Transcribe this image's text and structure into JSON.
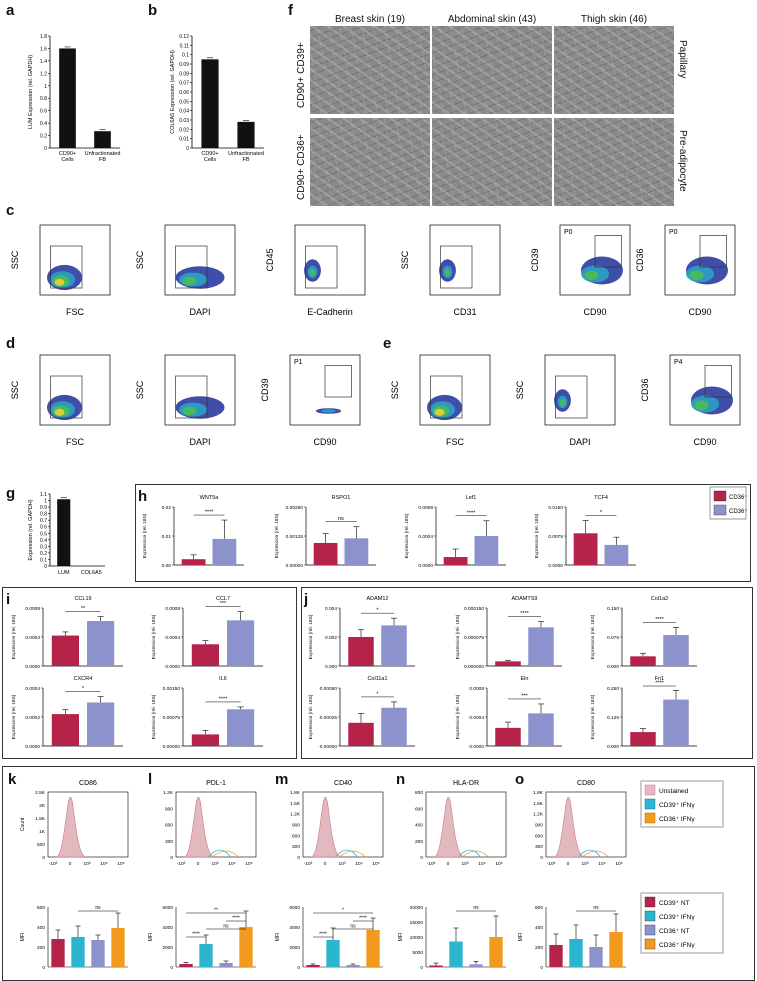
{
  "panels": [
    "a",
    "b",
    "c",
    "d",
    "e",
    "f",
    "g",
    "h",
    "i",
    "j",
    "k",
    "l",
    "m",
    "n",
    "o"
  ],
  "panel_a": {
    "ylabel": "LUM Expression (rel. GAPDH)",
    "yticks": [
      "0",
      "0.2",
      "0.4",
      "0.6",
      "0.8",
      "1",
      "1.2",
      "1.4",
      "1.6",
      "1.8"
    ],
    "categories": [
      "CD90+ Cells",
      "Unfractionated FB"
    ],
    "values": [
      1.6,
      0.27
    ]
  },
  "panel_b": {
    "ylabel": "COL6A5 Expression (rel. GAPDH)",
    "yticks": [
      "0",
      "0.01",
      "0.02",
      "0.03",
      "0.04",
      "0.05",
      "0.06",
      "0.07",
      "0.08",
      "0.09",
      "0.1",
      "0.11",
      "0.12"
    ],
    "categories": [
      "CD90+ Cells",
      "Unfractionated FB"
    ],
    "values": [
      0.095,
      0.028
    ]
  },
  "panel_f": {
    "columns": [
      "Breast skin (19)",
      "Abdominal skin (43)",
      "Thigh skin (46)"
    ],
    "rows_left": [
      "CD90+ CD39+",
      "CD90+ CD36+"
    ],
    "rows_right": [
      "Papillary",
      "Pre-adipocyte"
    ]
  },
  "flow_row_c": [
    {
      "ylabel": "SSC",
      "xlabel": "FSC",
      "yticks": [
        "0",
        "50K",
        "100K",
        "150K",
        "200K",
        "250K"
      ],
      "xticks": [
        "0",
        "50K",
        "100K",
        "150K",
        "200K",
        "250K"
      ]
    },
    {
      "ylabel": "SSC",
      "xlabel": "DAPI",
      "yticks": [
        "0",
        "50K",
        "100K",
        "150K",
        "200K",
        "250K"
      ],
      "xticks": [
        "-10³",
        "0",
        "10³",
        "10⁴",
        "10⁵"
      ]
    },
    {
      "ylabel": "CD45",
      "xlabel": "E-Cadherin",
      "yticks": [
        "-10³",
        "0",
        "10³",
        "10⁴",
        "10⁵"
      ],
      "xticks": [
        "-10³",
        "0",
        "10³",
        "10⁴",
        "10⁵"
      ]
    },
    {
      "ylabel": "SSC",
      "xlabel": "CD31",
      "yticks": [
        "0",
        "50K",
        "100K",
        "150K",
        "200K",
        "250K"
      ],
      "xticks": [
        "-10³",
        "0",
        "10³",
        "10⁴",
        "10⁵"
      ]
    },
    {
      "ylabel": "CD39",
      "xlabel": "CD90",
      "gate": "P0",
      "yticks": [
        "-10³",
        "0",
        "10³",
        "10⁴",
        "10⁵"
      ],
      "xticks": [
        "-10³",
        "0",
        "10³",
        "10⁴",
        "10⁵"
      ]
    },
    {
      "ylabel": "CD36",
      "xlabel": "CD90",
      "gate": "P0",
      "yticks": [
        "-10³",
        "0",
        "10³",
        "10⁴",
        "10⁵"
      ],
      "xticks": [
        "-10³",
        "0",
        "10³",
        "10⁴",
        "10⁵"
      ]
    }
  ],
  "flow_row_de": [
    {
      "ylabel": "SSC",
      "xlabel": "FSC"
    },
    {
      "ylabel": "SSC",
      "xlabel": "DAPI"
    },
    {
      "ylabel": "CD39",
      "xlabel": "CD90",
      "gate": "P1"
    },
    {
      "ylabel": "SSC",
      "xlabel": "FSC"
    },
    {
      "ylabel": "SSC",
      "xlabel": "DAPI"
    },
    {
      "ylabel": "CD36",
      "xlabel": "CD90",
      "gate": "P4"
    }
  ],
  "panel_g": {
    "ylabel": "Expression (rel. GAPDH)",
    "yticks": [
      "0",
      "0.1",
      "0.2",
      "0.3",
      "0.4",
      "0.5",
      "0.6",
      "0.7",
      "0.8",
      "0.9",
      "1",
      "1.1"
    ],
    "categories": [
      "LUM",
      "COL6A5"
    ],
    "values": [
      1.02,
      0
    ]
  },
  "legend_h": [
    {
      "label": "CD36⁺",
      "color": "#b5234a"
    },
    {
      "label": "CD36⁺",
      "color": "#8c93cc"
    }
  ],
  "legend_k": [
    "Unstained",
    "CD39⁺ IFNγ",
    "CD36⁺ IFNγ"
  ],
  "legend_mfi": [
    "CD39⁺ NT",
    "CD39⁺ IFNγ",
    "CD36⁺ NT",
    "CD36⁺ IFNγ"
  ],
  "colors": {
    "red": "#b5234a",
    "purple": "#8c93cc",
    "cyan": "#2bb5cf",
    "orange": "#f29a1d",
    "pink": "#c97d8a",
    "pinkfill": "#e3b9c0",
    "black": "#111111"
  },
  "chart_data": [
    {
      "panel": "a",
      "type": "bar",
      "categories": [
        "CD90+ Cells",
        "Unfractionated FB"
      ],
      "values": [
        1.6,
        0.27
      ],
      "ylabel": "LUM Expression (rel. GAPDH)",
      "ylim": [
        0,
        1.8
      ]
    },
    {
      "panel": "b",
      "type": "bar",
      "categories": [
        "CD90+ Cells",
        "Unfractionated FB"
      ],
      "values": [
        0.095,
        0.028
      ],
      "ylabel": "COL6A5 Expression (rel. GAPDH)",
      "ylim": [
        0,
        0.12
      ]
    },
    {
      "panel": "g",
      "type": "bar",
      "categories": [
        "LUM",
        "COL6A5"
      ],
      "values": [
        1.02,
        0
      ],
      "ylabel": "Expression (rel. GAPDH)",
      "ylim": [
        0,
        1.1
      ]
    },
    {
      "panel": "h",
      "type": "bar",
      "title": "WNT5a",
      "ylabel": "Expression (rel. 18S)",
      "yticks": [
        "0.00",
        "0.01",
        "0.02"
      ],
      "ymax": 0.02,
      "values": [
        0.002,
        0.009
      ],
      "err": [
        0.0015,
        0.0065
      ],
      "sig": "****"
    },
    {
      "panel": "h",
      "type": "bar",
      "title": "RSPO1",
      "ylabel": "Expression (rel. 18S)",
      "yticks": [
        "0.00000",
        "0.00125",
        "0.00250"
      ],
      "ymax": 0.0025,
      "values": [
        0.00095,
        0.00115
      ],
      "err": [
        0.0004,
        0.0005
      ],
      "sig": "ns"
    },
    {
      "panel": "h",
      "type": "bar",
      "title": "Lef1",
      "ylabel": "Expression (rel. 18S)",
      "yticks": [
        "0.0000",
        "0.0004",
        "0.0008"
      ],
      "ymax": 0.0008,
      "values": [
        0.00011,
        0.0004
      ],
      "err": [
        0.00011,
        0.00021
      ],
      "sig": "****"
    },
    {
      "panel": "h",
      "type": "bar",
      "title": "TCF4",
      "ylabel": "Expression (rel. 18S)",
      "yticks": [
        "0.0000",
        "0.0075",
        "0.0150"
      ],
      "ymax": 0.015,
      "values": [
        0.0082,
        0.0052
      ],
      "err": [
        0.0033,
        0.002
      ],
      "sig": "*"
    },
    {
      "panel": "i",
      "type": "bar",
      "title": "CCL19",
      "ylabel": "Expression (rel. 18S)",
      "yticks": [
        "0.0000",
        "0.0004",
        "0.0008"
      ],
      "ymax": 0.0008,
      "values": [
        0.00042,
        0.00062
      ],
      "err": [
        5e-05,
        6e-05
      ],
      "sig": "**"
    },
    {
      "panel": "i",
      "type": "bar",
      "title": "CCL7",
      "ylabel": "Expression (rel. 18S)",
      "yticks": [
        "0.0000",
        "0.0004",
        "0.0008"
      ],
      "ymax": 0.0008,
      "values": [
        0.0003,
        0.00063
      ],
      "err": [
        5e-05,
        0.00012
      ],
      "sig": "***"
    },
    {
      "panel": "i",
      "type": "bar",
      "title": "CXCR4",
      "ylabel": "Expression (rel. 18S)",
      "yticks": [
        "0.0000",
        "0.0002",
        "0.0004"
      ],
      "ymax": 0.0004,
      "values": [
        0.00022,
        0.0003
      ],
      "err": [
        3e-05,
        4e-05
      ],
      "sig": "*"
    },
    {
      "panel": "i",
      "type": "bar",
      "title": "IL6",
      "ylabel": "Expression (rel. 18S)",
      "yticks": [
        "0.00000",
        "0.00075",
        "0.00150"
      ],
      "ymax": 0.0015,
      "values": [
        0.0003,
        0.00095
      ],
      "err": [
        0.0001,
        6e-05
      ],
      "sig": "****"
    },
    {
      "panel": "j",
      "type": "bar",
      "title": "ADAM12",
      "ylabel": "Expression (rel. 18S)",
      "yticks": [
        "0.000",
        "0.002",
        "0.004"
      ],
      "ymax": 0.004,
      "values": [
        0.002,
        0.0028
      ],
      "err": [
        0.0005,
        0.0005
      ],
      "sig": "*"
    },
    {
      "panel": "j",
      "type": "bar",
      "title": "ADAMTS9",
      "ylabel": "Expression (rel. 18S)",
      "yticks": [
        "0.000000",
        "0.000075",
        "0.000150"
      ],
      "ymax": 0.00015,
      "values": [
        1.2e-05,
        0.0001
      ],
      "err": [
        2e-06,
        1.5e-05
      ],
      "sig": "****"
    },
    {
      "panel": "j",
      "type": "bar",
      "title": "Col1a2",
      "ylabel": "Expression (rel. 18S)",
      "yticks": [
        "0.000",
        "0.075",
        "0.150"
      ],
      "ymax": 0.15,
      "values": [
        0.025,
        0.08
      ],
      "err": [
        0.008,
        0.02
      ],
      "sig": "****"
    },
    {
      "panel": "j",
      "type": "bar",
      "title": "Col11a1",
      "ylabel": "Expression (rel. 18S)",
      "yticks": [
        "0.00000",
        "0.00025",
        "0.00050"
      ],
      "ymax": 0.0005,
      "values": [
        0.0002,
        0.00033
      ],
      "err": [
        8e-05,
        5e-05
      ],
      "sig": "*"
    },
    {
      "panel": "j",
      "type": "bar",
      "title": "Eln",
      "ylabel": "Expression (rel. 18S)",
      "yticks": [
        "0.0000",
        "0.0004",
        "0.0008"
      ],
      "ymax": 0.0008,
      "values": [
        0.00025,
        0.00045
      ],
      "err": [
        8e-05,
        0.00013
      ],
      "sig": "***"
    },
    {
      "panel": "j",
      "type": "bar",
      "title": "Fn1",
      "ylabel": "Expression (rel. 18S)",
      "yticks": [
        "0.000",
        "0.125",
        "0.250"
      ],
      "ymax": 0.25,
      "values": [
        0.06,
        0.2
      ],
      "err": [
        0.015,
        0.04
      ],
      "sig": "****"
    },
    {
      "panel": "k",
      "type": "bar",
      "ylabel": "MFI",
      "yticks": [
        "0",
        "200",
        "400",
        "600"
      ],
      "ymax": 600,
      "values": [
        280,
        300,
        270,
        390
      ],
      "err": [
        90,
        110,
        50,
        150
      ],
      "sig": "ns"
    },
    {
      "panel": "l",
      "type": "bar",
      "ylabel": "MFI",
      "yticks": [
        "0",
        "2000",
        "4000",
        "6000"
      ],
      "ymax": 6000,
      "values": [
        300,
        2300,
        400,
        4000
      ],
      "err": [
        150,
        900,
        200,
        1600
      ],
      "sig": [
        "****",
        "ns",
        "****",
        "**"
      ]
    },
    {
      "panel": "m",
      "type": "bar",
      "ylabel": "MFI",
      "yticks": [
        "0",
        "2000",
        "4000",
        "6000"
      ],
      "ymax": 6000,
      "values": [
        200,
        2700,
        200,
        3700
      ],
      "err": [
        100,
        1200,
        100,
        1200
      ],
      "sig": [
        "****",
        "ns",
        "****",
        "*"
      ]
    },
    {
      "panel": "n",
      "type": "bar",
      "ylabel": "MFI",
      "yticks": [
        "0",
        "5000",
        "10000",
        "15000",
        "20000"
      ],
      "ymax": 20000,
      "values": [
        500,
        8500,
        900,
        10000
      ],
      "err": [
        800,
        4500,
        1000,
        7000
      ],
      "sig": "ns"
    },
    {
      "panel": "o",
      "type": "bar",
      "ylabel": "MFI",
      "yticks": [
        "0",
        "200",
        "400",
        "600"
      ],
      "ymax": 600,
      "values": [
        220,
        280,
        200,
        350
      ],
      "err": [
        110,
        140,
        120,
        180
      ],
      "sig": "ns"
    }
  ],
  "histograms": [
    {
      "title": "CD86",
      "yticks": [
        "0",
        "500",
        "1K",
        "1.5K",
        "2K",
        "2.5K"
      ],
      "ylabel": "Count"
    },
    {
      "title": "PDL-1",
      "yticks": [
        "0",
        "300",
        "600",
        "900",
        "1.2K"
      ]
    },
    {
      "title": "CD40",
      "yticks": [
        "0",
        "300",
        "600",
        "900",
        "1.2K",
        "1.5K",
        "1.8K"
      ]
    },
    {
      "title": "HLA-DR",
      "yticks": [
        "0",
        "200",
        "400",
        "600",
        "800"
      ]
    },
    {
      "title": "CD80",
      "yticks": [
        "0",
        "300",
        "600",
        "900",
        "1.2K",
        "1.5K",
        "1.8K"
      ]
    }
  ],
  "hist_xticks": [
    "-10³",
    "0",
    "10³",
    "10⁴",
    "10⁵"
  ]
}
